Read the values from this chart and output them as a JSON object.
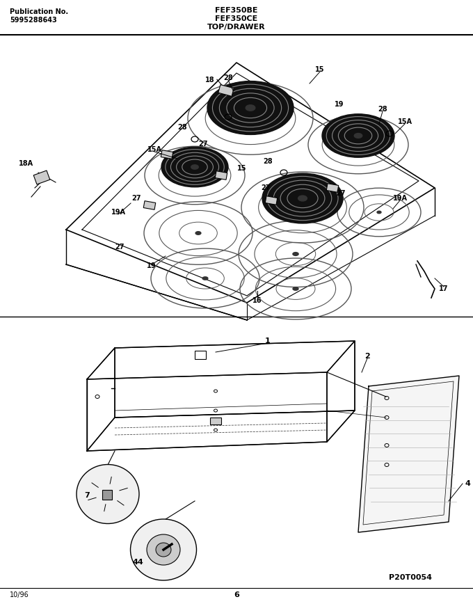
{
  "title_left_line1": "Publication No.",
  "title_left_line2": "5995288643",
  "title_center_line1": "FEF350BE",
  "title_center_line2": "FEF350CE",
  "title_center_line3": "TOP/DRAWER",
  "footer_left": "10/96",
  "footer_center": "6",
  "footer_right": "P20T0054",
  "bg_color": "#ffffff",
  "fig_width": 6.8,
  "fig_height": 8.68,
  "dpi": 100
}
